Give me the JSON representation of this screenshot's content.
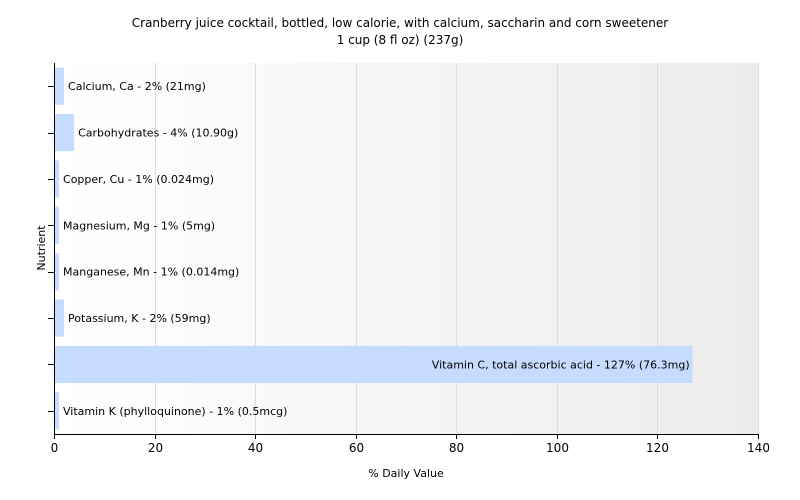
{
  "chart_data": {
    "type": "bar",
    "orientation": "horizontal",
    "title": "Cranberry juice cocktail, bottled, low calorie, with calcium, saccharin and corn sweetener",
    "subtitle": "1 cup (8 fl oz) (237g)",
    "xlabel": "% Daily Value",
    "ylabel": "Nutrient",
    "xlim": [
      0,
      140
    ],
    "xticks": [
      0,
      20,
      40,
      60,
      80,
      100,
      120,
      140
    ],
    "grid": true,
    "bar_color": "#c5dcff",
    "categories": [
      "Calcium, Ca",
      "Carbohydrates",
      "Copper, Cu",
      "Magnesium, Mg",
      "Manganese, Mn",
      "Potassium, K",
      "Vitamin C, total ascorbic acid",
      "Vitamin K (phylloquinone)"
    ],
    "values": [
      2,
      4,
      1,
      1,
      1,
      2,
      127,
      1
    ],
    "labels": [
      "Calcium, Ca - 2% (21mg)",
      "Carbohydrates - 4% (10.90g)",
      "Copper, Cu - 1% (0.024mg)",
      "Magnesium, Mg - 1% (5mg)",
      "Manganese, Mn - 1% (0.014mg)",
      "Potassium, K - 2% (59mg)",
      "Vitamin C, total ascorbic acid - 127% (76.3mg)",
      "Vitamin K (phylloquinone) - 1% (0.5mcg)"
    ]
  }
}
